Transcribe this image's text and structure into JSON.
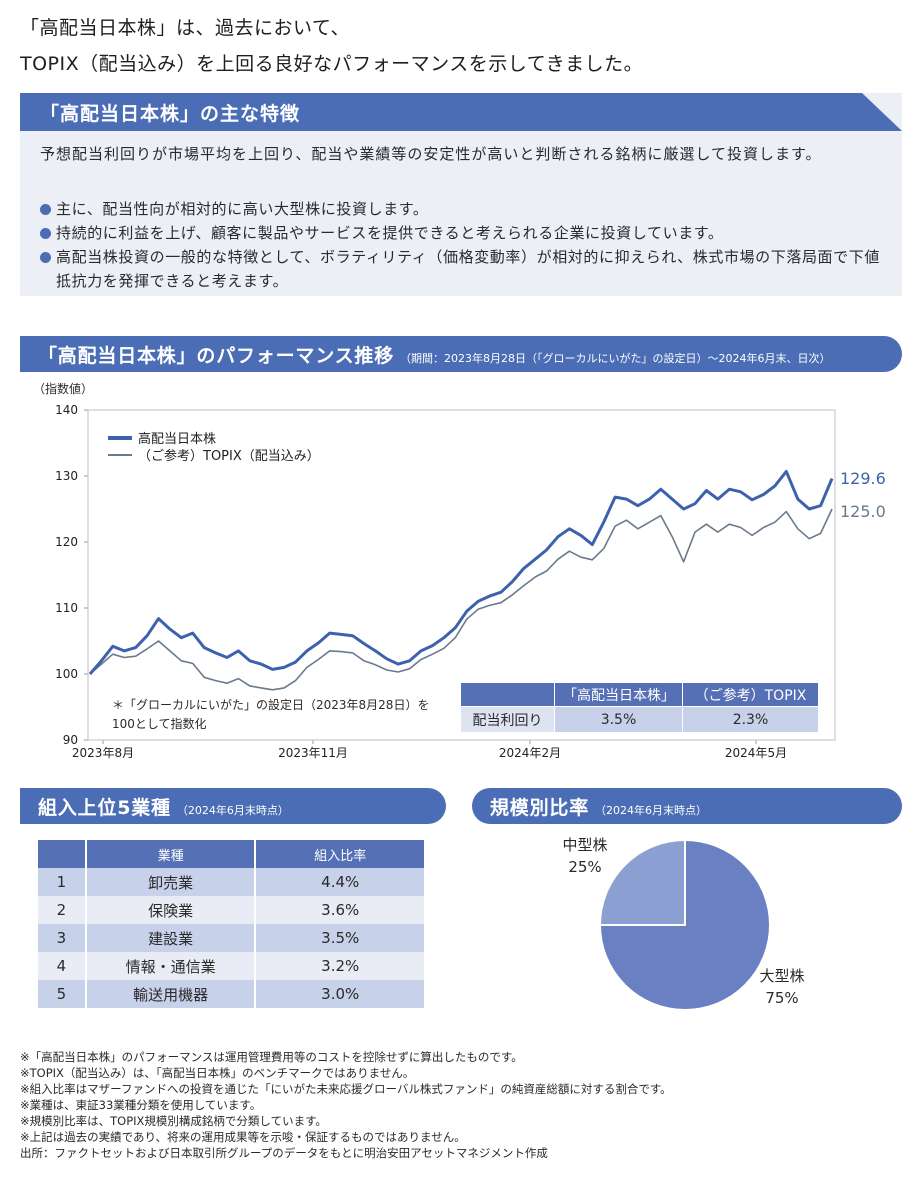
{
  "intro": {
    "line1": "「高配当日本株」は、過去において、",
    "line2": "TOPIX（配当込み）を上回る良好なパフォーマンスを示してきました。"
  },
  "features": {
    "title": "「高配当日本株」の主な特徴",
    "lead": "予想配当利回りが市場平均を上回り、配当や業績等の安定性が高いと判断される銘柄に厳選して投資します。",
    "bullets": [
      "主に、配当性向が相対的に高い大型株に投資します。",
      "持続的に利益を上げ、顧客に製品やサービスを提供できると考えられる企業に投資しています。",
      "高配当株投資の一般的な特徴として、ボラティリティ（価格変動率）が相対的に抑えられ、株式市場の下落局面で下値抵抗力を発揮できると考えます。"
    ]
  },
  "performance": {
    "title": "「高配当日本株」のパフォーマンス推移",
    "subtitle": "（期間：2023年8月28日（「グローカルにいがた」の設定日）～2024年6月末、日次）",
    "y_unit": "（指数値）",
    "note": "＊「グローカルにいがた」の設定日（2023年8月28日）を100として指数化",
    "yield_table": {
      "headers": [
        "",
        "「高配当日本株」",
        "（ご参考）TOPIX"
      ],
      "row_label": "配当利回り",
      "values": [
        "3.5%",
        "2.3%"
      ]
    }
  },
  "chart_data": {
    "type": "line",
    "title": "",
    "xlabel": "",
    "ylabel": "（指数値）",
    "ylim": [
      90,
      140
    ],
    "y_ticks": [
      90,
      100,
      110,
      120,
      130,
      140
    ],
    "x_ticks": [
      "2023年8月",
      "2023年11月",
      "2024年2月",
      "2024年5月"
    ],
    "legend": "top-left",
    "grid": false,
    "end_labels": [
      "129.6",
      "125.0"
    ],
    "series": [
      {
        "name": "高配当日本株",
        "color": "#3d62ad",
        "values": [
          100.0,
          102.0,
          104.2,
          103.5,
          104.0,
          105.8,
          108.4,
          106.8,
          105.5,
          106.2,
          104.0,
          103.2,
          102.5,
          103.5,
          102.0,
          101.5,
          100.7,
          101.0,
          101.8,
          103.5,
          104.7,
          106.2,
          106.0,
          105.8,
          104.6,
          103.5,
          102.3,
          101.5,
          102.0,
          103.5,
          104.3,
          105.5,
          107.0,
          109.5,
          111.0,
          111.8,
          112.4,
          114.0,
          116.0,
          117.4,
          118.8,
          120.8,
          122.0,
          121.0,
          119.6,
          123.0,
          126.8,
          126.5,
          125.5,
          126.5,
          128.0,
          126.5,
          125.0,
          125.8,
          127.8,
          126.5,
          128.0,
          127.6,
          126.4,
          127.2,
          128.5,
          130.7,
          126.5,
          125.0,
          125.5,
          129.6
        ]
      },
      {
        "name": "（ご参考）TOPIX（配当込み）",
        "color": "#6a7a8c",
        "values": [
          100.0,
          101.5,
          103.0,
          102.5,
          102.7,
          103.8,
          105.0,
          103.5,
          102.0,
          101.6,
          99.5,
          99.0,
          98.6,
          99.3,
          98.2,
          97.9,
          97.6,
          97.9,
          99.0,
          101.0,
          102.2,
          103.5,
          103.4,
          103.2,
          102.0,
          101.4,
          100.6,
          100.3,
          100.8,
          102.2,
          103.0,
          103.9,
          105.5,
          108.3,
          109.8,
          110.4,
          110.8,
          112.0,
          113.4,
          114.7,
          115.6,
          117.4,
          118.6,
          117.7,
          117.3,
          119.0,
          122.4,
          123.3,
          122.0,
          123.0,
          124.0,
          120.8,
          117.0,
          121.5,
          122.7,
          121.5,
          122.7,
          122.2,
          121.0,
          122.2,
          123.0,
          124.6,
          122.0,
          120.5,
          121.3,
          125.0
        ]
      }
    ]
  },
  "industries": {
    "title": "組入上位5業種",
    "subtitle": "（2024年6月末時点）",
    "headers": [
      "",
      "業種",
      "組入比率"
    ],
    "rows": [
      [
        "1",
        "卸売業",
        "4.4%"
      ],
      [
        "2",
        "保険業",
        "3.6%"
      ],
      [
        "3",
        "建設業",
        "3.5%"
      ],
      [
        "4",
        "情報・通信業",
        "3.2%"
      ],
      [
        "5",
        "輸送用機器",
        "3.0%"
      ]
    ]
  },
  "size": {
    "title": "規模別比率",
    "subtitle": "（2024年6月末時点）",
    "slices": [
      {
        "label": "大型株",
        "value": "75%",
        "pct": 75,
        "color": "#6a80c2"
      },
      {
        "label": "中型株",
        "value": "25%",
        "pct": 25,
        "color": "#8c9fd3"
      }
    ]
  },
  "footnotes": [
    "※「高配当日本株」のパフォーマンスは運用管理費用等のコストを控除せずに算出したものです。",
    "※TOPIX（配当込み）は、「高配当日本株」のベンチマークではありません。",
    "※組入比率はマザーファンドへの投資を通じた「にいがた未来応援グローバル株式ファンド」の純資産総額に対する割合です。",
    "※業種は、東証33業種分類を使用しています。",
    "※規模別比率は、TOPIX規模別構成銘柄で分類しています。",
    "※上記は過去の実績であり、将来の運用成果等を示唆・保証するものではありません。",
    "出所：ファクトセットおよび日本取引所グループのデータをもとに明治安田アセットマネジメント作成"
  ]
}
